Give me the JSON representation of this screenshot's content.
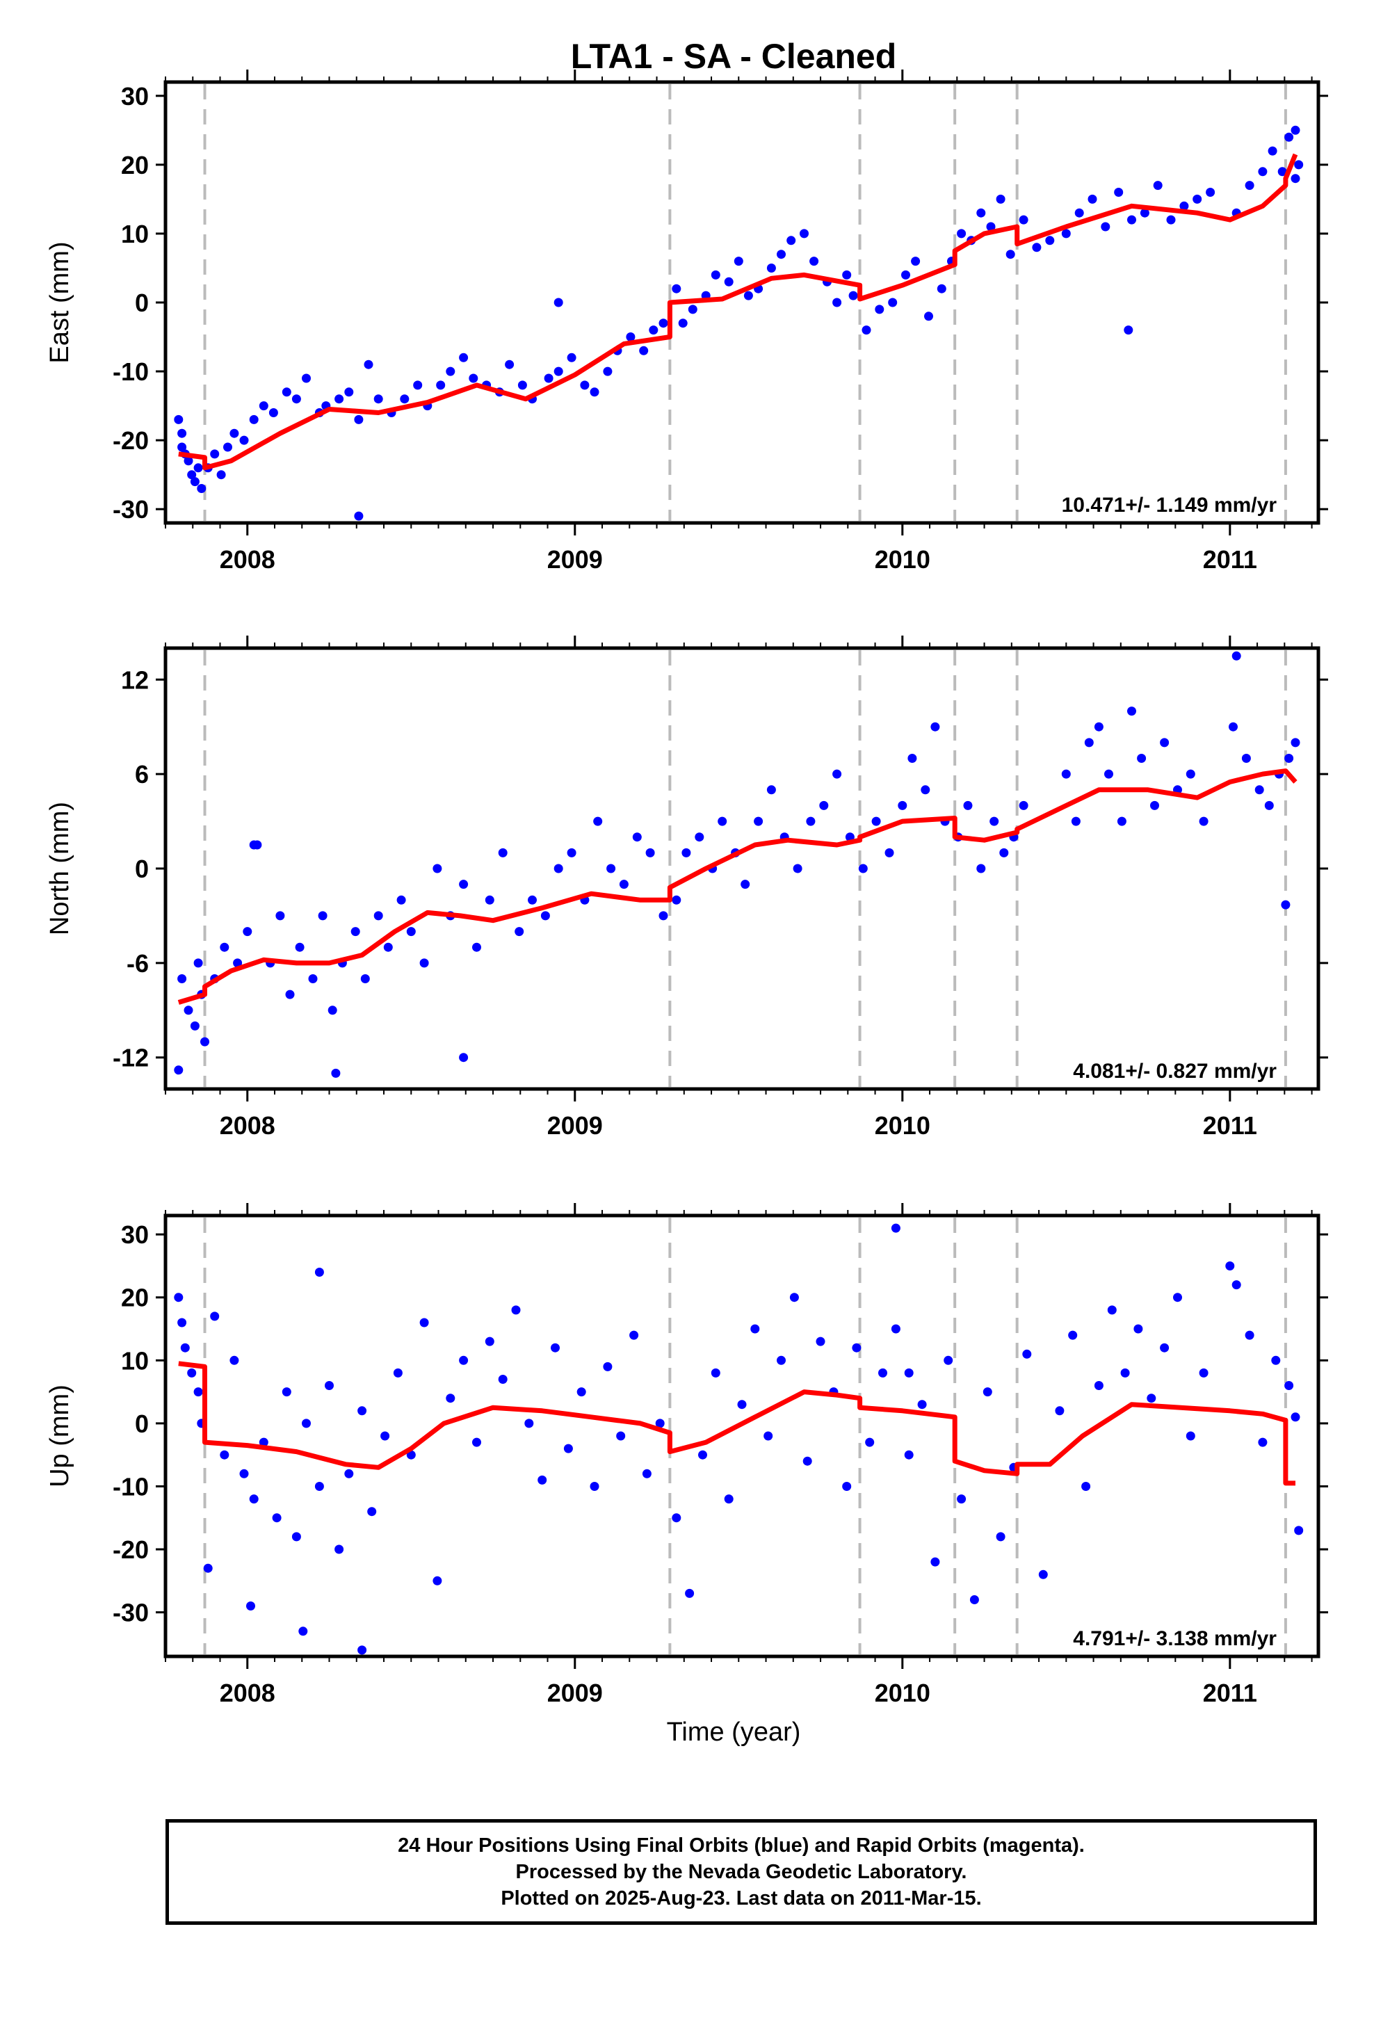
{
  "title": "LTA1  - SA - Cleaned",
  "xlabel": "Time (year)",
  "colors": {
    "points": "#0000ff",
    "fit": "#ff0000",
    "breaks": "#bbbbbb",
    "axis": "#000000"
  },
  "footer": {
    "line1": "24 Hour Positions Using Final Orbits (blue) and Rapid Orbits (magenta).",
    "line2": "Processed by the Nevada Geodetic Laboratory.",
    "line3": "Plotted on 2025-Aug-23. Last data on 2011-Mar-15."
  },
  "chart_data": [
    {
      "type": "scatter",
      "panel": "east",
      "ylabel": "East (mm)",
      "rate_label": "10.471+/- 1.149 mm/yr",
      "xlim": [
        2007.75,
        2011.27
      ],
      "ylim": [
        -32,
        32
      ],
      "xticks": [
        2008,
        2009,
        2010,
        2011
      ],
      "yticks": [
        -30,
        -20,
        -10,
        0,
        10,
        20,
        30
      ],
      "breaks": [
        2007.87,
        2009.29,
        2009.87,
        2010.16,
        2010.35,
        2011.17
      ],
      "fit": {
        "x": [
          2007.79,
          2007.87,
          2007.87,
          2007.95,
          2008.1,
          2008.25,
          2008.4,
          2008.55,
          2008.7,
          2008.85,
          2009.0,
          2009.15,
          2009.29,
          2009.29,
          2009.45,
          2009.6,
          2009.7,
          2009.87,
          2009.87,
          2010.0,
          2010.16,
          2010.16,
          2010.25,
          2010.35,
          2010.35,
          2010.5,
          2010.7,
          2010.9,
          2011.0,
          2011.1,
          2011.17,
          2011.17,
          2011.2
        ],
        "y": [
          -22,
          -22.5,
          -24,
          -23,
          -19,
          -15.5,
          -16,
          -14.5,
          -12,
          -14,
          -10.5,
          -6,
          -5,
          0,
          0.5,
          3.5,
          4,
          2.5,
          0.5,
          2.5,
          5.5,
          7.5,
          10,
          11,
          8.5,
          11,
          14,
          13,
          12,
          14,
          17,
          18,
          21.5
        ]
      },
      "points": {
        "x": [
          2007.79,
          2007.8,
          2007.8,
          2007.81,
          2007.82,
          2007.83,
          2007.84,
          2007.85,
          2007.86,
          2007.88,
          2007.9,
          2007.92,
          2007.94,
          2007.96,
          2007.99,
          2008.02,
          2008.05,
          2008.08,
          2008.12,
          2008.15,
          2008.18,
          2008.22,
          2008.24,
          2008.28,
          2008.31,
          2008.34,
          2008.37,
          2008.4,
          2008.44,
          2008.48,
          2008.52,
          2008.55,
          2008.59,
          2008.62,
          2008.66,
          2008.69,
          2008.73,
          2008.77,
          2008.8,
          2008.84,
          2008.87,
          2008.92,
          2008.95,
          2008.99,
          2009.03,
          2009.06,
          2009.1,
          2009.13,
          2009.17,
          2009.21,
          2009.24,
          2009.27,
          2009.31,
          2009.33,
          2009.36,
          2009.4,
          2009.43,
          2009.47,
          2009.5,
          2009.53,
          2009.56,
          2009.6,
          2009.63,
          2009.66,
          2009.7,
          2009.73,
          2009.77,
          2009.8,
          2009.83,
          2009.85,
          2009.89,
          2009.93,
          2009.97,
          2010.01,
          2010.04,
          2010.08,
          2010.12,
          2010.15,
          2010.18,
          2010.21,
          2010.24,
          2010.27,
          2010.3,
          2010.33,
          2010.37,
          2010.41,
          2010.45,
          2010.5,
          2010.54,
          2010.58,
          2010.62,
          2010.66,
          2010.7,
          2010.74,
          2010.78,
          2010.82,
          2010.86,
          2010.9,
          2010.94,
          2011.02,
          2011.06,
          2011.1,
          2011.13,
          2011.16,
          2011.18,
          2011.2,
          2011.2,
          2011.21,
          2008.34,
          2008.95,
          2010.69
        ],
        "y": [
          -17,
          -19,
          -21,
          -22,
          -23,
          -25,
          -26,
          -24,
          -27,
          -24,
          -22,
          -25,
          -21,
          -19,
          -20,
          -17,
          -15,
          -16,
          -13,
          -14,
          -11,
          -16,
          -15,
          -14,
          -13,
          -17,
          -9,
          -14,
          -16,
          -14,
          -12,
          -15,
          -12,
          -10,
          -8,
          -11,
          -12,
          -13,
          -9,
          -12,
          -14,
          -11,
          -10,
          -8,
          -12,
          -13,
          -10,
          -7,
          -5,
          -7,
          -4,
          -3,
          2,
          -3,
          -1,
          1,
          4,
          3,
          6,
          1,
          2,
          5,
          7,
          9,
          10,
          6,
          3,
          0,
          4,
          1,
          -4,
          -1,
          0,
          4,
          6,
          -2,
          2,
          6,
          10,
          9,
          13,
          11,
          15,
          7,
          12,
          8,
          9,
          10,
          13,
          15,
          11,
          16,
          12,
          13,
          17,
          12,
          14,
          15,
          16,
          13,
          17,
          19,
          22,
          19,
          24,
          25,
          18,
          20,
          -31,
          0,
          -4
        ]
      }
    },
    {
      "type": "scatter",
      "panel": "north",
      "ylabel": "North (mm)",
      "rate_label": "4.081+/- 0.827 mm/yr",
      "xlim": [
        2007.75,
        2011.27
      ],
      "ylim": [
        -14,
        14
      ],
      "xticks": [
        2008,
        2009,
        2010,
        2011
      ],
      "yticks": [
        -12,
        -6,
        0,
        6,
        12
      ],
      "breaks": [
        2007.87,
        2009.29,
        2009.87,
        2010.16,
        2010.35,
        2011.17
      ],
      "fit": {
        "x": [
          2007.79,
          2007.87,
          2007.87,
          2007.95,
          2008.05,
          2008.15,
          2008.25,
          2008.35,
          2008.45,
          2008.55,
          2008.65,
          2008.75,
          2008.9,
          2009.05,
          2009.2,
          2009.29,
          2009.29,
          2009.4,
          2009.55,
          2009.65,
          2009.8,
          2009.87,
          2009.87,
          2010.0,
          2010.16,
          2010.16,
          2010.25,
          2010.35,
          2010.35,
          2010.5,
          2010.6,
          2010.75,
          2010.9,
          2011.0,
          2011.1,
          2011.17,
          2011.17,
          2011.2
        ],
        "y": [
          -8.5,
          -8,
          -7.5,
          -6.5,
          -5.8,
          -6,
          -6,
          -5.5,
          -4,
          -2.8,
          -3,
          -3.3,
          -2.5,
          -1.6,
          -2,
          -2,
          -1.2,
          0,
          1.5,
          1.8,
          1.5,
          1.8,
          2,
          3,
          3.2,
          2,
          1.8,
          2.3,
          2.5,
          4,
          5,
          5,
          4.5,
          5.5,
          6,
          6.2,
          6.2,
          5.5
        ]
      },
      "points": {
        "x": [
          2007.79,
          2007.8,
          2007.82,
          2007.84,
          2007.85,
          2007.86,
          2007.87,
          2007.9,
          2007.93,
          2007.97,
          2008.0,
          2008.03,
          2008.07,
          2008.1,
          2008.13,
          2008.16,
          2008.2,
          2008.23,
          2008.26,
          2008.29,
          2008.33,
          2008.36,
          2008.4,
          2008.43,
          2008.47,
          2008.5,
          2008.54,
          2008.58,
          2008.62,
          2008.66,
          2008.7,
          2008.74,
          2008.78,
          2008.83,
          2008.87,
          2008.91,
          2008.95,
          2008.99,
          2009.03,
          2009.07,
          2009.11,
          2009.15,
          2009.19,
          2009.23,
          2009.27,
          2009.31,
          2009.34,
          2009.38,
          2009.42,
          2009.45,
          2009.49,
          2009.52,
          2009.56,
          2009.6,
          2009.64,
          2009.68,
          2009.72,
          2009.76,
          2009.8,
          2009.84,
          2009.88,
          2009.92,
          2009.96,
          2010.0,
          2010.03,
          2010.07,
          2010.1,
          2010.13,
          2010.17,
          2010.2,
          2010.24,
          2010.28,
          2010.31,
          2010.34,
          2010.37,
          2010.5,
          2010.53,
          2010.57,
          2010.6,
          2010.63,
          2010.67,
          2010.7,
          2010.73,
          2010.77,
          2010.8,
          2010.84,
          2010.88,
          2010.92,
          2011.01,
          2011.05,
          2011.09,
          2011.12,
          2011.15,
          2011.18,
          2011.2,
          2011.02,
          2011.17,
          2008.27,
          2008.02,
          2008.66
        ],
        "y": [
          -12.8,
          -7,
          -9,
          -10,
          -6,
          -8,
          -11,
          -7,
          -5,
          -6,
          -4,
          1.5,
          -6,
          -3,
          -8,
          -5,
          -7,
          -3,
          -9,
          -6,
          -4,
          -7,
          -3,
          -5,
          -2,
          -4,
          -6,
          0,
          -3,
          -1,
          -5,
          -2,
          1,
          -4,
          -2,
          -3,
          0,
          1,
          -2,
          3,
          0,
          -1,
          2,
          1,
          -3,
          -2,
          1,
          2,
          0,
          3,
          1,
          -1,
          3,
          5,
          2,
          0,
          3,
          4,
          6,
          2,
          0,
          3,
          1,
          4,
          7,
          5,
          9,
          3,
          2,
          4,
          0,
          3,
          1,
          2,
          4,
          6,
          3,
          8,
          9,
          6,
          3,
          10,
          7,
          4,
          8,
          5,
          6,
          3,
          9,
          7,
          5,
          4,
          6,
          7,
          8,
          13.5,
          -2.3,
          -13,
          1.5,
          -12
        ]
      }
    },
    {
      "type": "scatter",
      "panel": "up",
      "ylabel": "Up (mm)",
      "rate_label": "4.791+/- 3.138 mm/yr",
      "xlim": [
        2007.75,
        2011.27
      ],
      "ylim": [
        -37,
        33
      ],
      "xticks": [
        2008,
        2009,
        2010,
        2011
      ],
      "yticks": [
        -30,
        -20,
        -10,
        0,
        10,
        20,
        30
      ],
      "breaks": [
        2007.87,
        2009.29,
        2009.87,
        2010.16,
        2010.35,
        2011.17
      ],
      "fit": {
        "x": [
          2007.79,
          2007.87,
          2007.87,
          2008.0,
          2008.15,
          2008.3,
          2008.4,
          2008.5,
          2008.6,
          2008.75,
          2008.9,
          2009.05,
          2009.2,
          2009.29,
          2009.29,
          2009.4,
          2009.55,
          2009.7,
          2009.8,
          2009.87,
          2009.87,
          2010.0,
          2010.16,
          2010.16,
          2010.25,
          2010.35,
          2010.35,
          2010.45,
          2010.55,
          2010.7,
          2010.85,
          2011.0,
          2011.1,
          2011.17,
          2011.17,
          2011.2
        ],
        "y": [
          9.5,
          9,
          -3,
          -3.5,
          -4.5,
          -6.5,
          -7,
          -4,
          0,
          2.5,
          2,
          1,
          0,
          -1.5,
          -4.5,
          -3,
          1,
          5,
          4.5,
          4,
          2.5,
          2,
          1,
          -6,
          -7.5,
          -8,
          -6.5,
          -6.5,
          -2,
          3,
          2.5,
          2,
          1.5,
          0.5,
          -9.5,
          -9.5
        ]
      },
      "points": {
        "x": [
          2007.79,
          2007.8,
          2007.81,
          2007.83,
          2007.85,
          2007.86,
          2007.88,
          2007.9,
          2007.93,
          2007.96,
          2007.99,
          2008.02,
          2008.05,
          2008.09,
          2008.12,
          2008.15,
          2008.18,
          2008.22,
          2008.25,
          2008.28,
          2008.31,
          2008.35,
          2008.38,
          2008.42,
          2008.46,
          2008.5,
          2008.54,
          2008.58,
          2008.62,
          2008.66,
          2008.7,
          2008.74,
          2008.78,
          2008.82,
          2008.86,
          2008.9,
          2008.94,
          2008.98,
          2009.02,
          2009.06,
          2009.1,
          2009.14,
          2009.18,
          2009.22,
          2009.26,
          2009.31,
          2009.35,
          2009.39,
          2009.43,
          2009.47,
          2009.51,
          2009.55,
          2009.59,
          2009.63,
          2009.67,
          2009.71,
          2009.75,
          2009.79,
          2009.83,
          2009.86,
          2009.9,
          2009.94,
          2009.98,
          2010.02,
          2010.06,
          2010.1,
          2010.14,
          2010.18,
          2010.22,
          2010.26,
          2010.3,
          2010.34,
          2010.38,
          2010.43,
          2010.48,
          2010.52,
          2010.56,
          2010.6,
          2010.64,
          2010.68,
          2010.72,
          2010.76,
          2010.8,
          2010.84,
          2010.88,
          2010.92,
          2011.02,
          2011.06,
          2011.1,
          2011.14,
          2011.18,
          2011.2,
          2011.21,
          2009.98,
          2008.17,
          2008.22,
          2008.35,
          2008.01,
          2010.02,
          2011.0
        ],
        "y": [
          20,
          16,
          12,
          8,
          5,
          0,
          -23,
          17,
          -5,
          10,
          -8,
          -12,
          -3,
          -15,
          5,
          -18,
          0,
          -10,
          6,
          -20,
          -8,
          2,
          -14,
          -2,
          8,
          -5,
          16,
          -25,
          4,
          10,
          -3,
          13,
          7,
          18,
          0,
          -9,
          12,
          -4,
          5,
          -10,
          9,
          -2,
          14,
          -8,
          0,
          -15,
          -27,
          -5,
          8,
          -12,
          3,
          15,
          -2,
          10,
          20,
          -6,
          13,
          5,
          -10,
          12,
          -3,
          8,
          15,
          -5,
          3,
          -22,
          10,
          -12,
          -28,
          5,
          -18,
          -7,
          11,
          -24,
          2,
          14,
          -10,
          6,
          18,
          8,
          15,
          4,
          12,
          20,
          -2,
          8,
          22,
          14,
          -3,
          10,
          6,
          1,
          -17,
          31,
          -33,
          24,
          -36,
          -29,
          8,
          25
        ]
      }
    }
  ]
}
